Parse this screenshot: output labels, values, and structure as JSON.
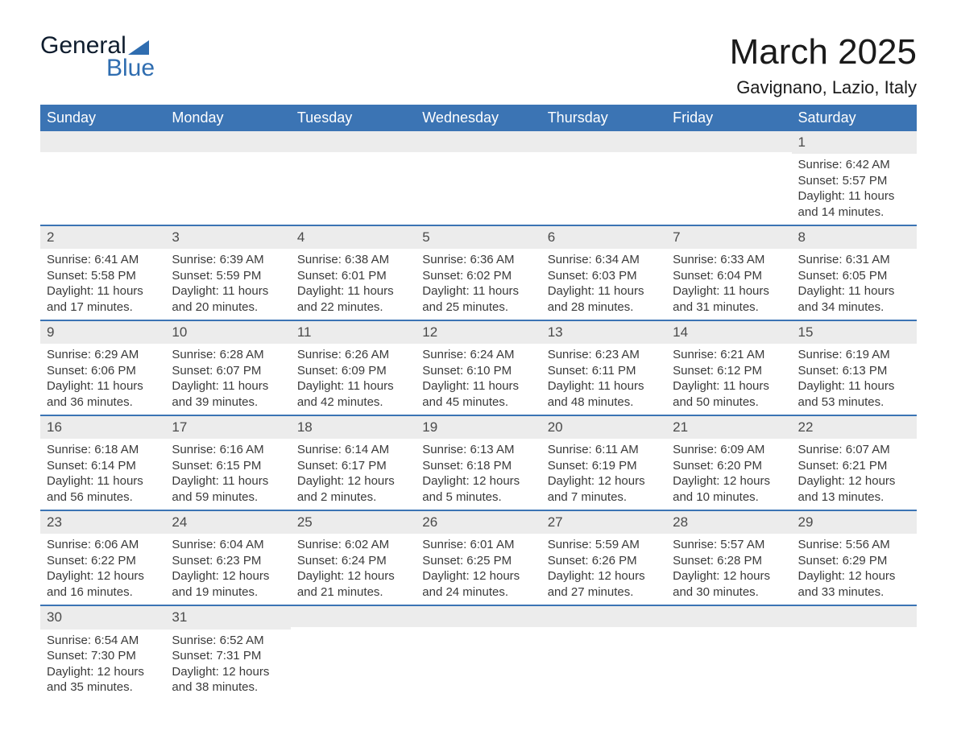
{
  "logo": {
    "text_general": "General",
    "text_blue": "Blue"
  },
  "header": {
    "month_title": "March 2025",
    "location": "Gavignano, Lazio, Italy"
  },
  "day_labels": [
    "Sunday",
    "Monday",
    "Tuesday",
    "Wednesday",
    "Thursday",
    "Friday",
    "Saturday"
  ],
  "colors": {
    "header_bg": "#3b74b4",
    "header_fg": "#ffffff",
    "strip_bg": "#ececec",
    "line": "#3b74b4",
    "text": "#3a3a3a",
    "logo_dark": "#0f1d2e",
    "logo_blue": "#2f6db0"
  },
  "weeks": [
    [
      {
        "blank": true
      },
      {
        "blank": true
      },
      {
        "blank": true
      },
      {
        "blank": true
      },
      {
        "blank": true
      },
      {
        "blank": true
      },
      {
        "n": "1",
        "sunrise": "Sunrise: 6:42 AM",
        "sunset": "Sunset: 5:57 PM",
        "d1": "Daylight: 11 hours",
        "d2": "and 14 minutes."
      }
    ],
    [
      {
        "n": "2",
        "sunrise": "Sunrise: 6:41 AM",
        "sunset": "Sunset: 5:58 PM",
        "d1": "Daylight: 11 hours",
        "d2": "and 17 minutes."
      },
      {
        "n": "3",
        "sunrise": "Sunrise: 6:39 AM",
        "sunset": "Sunset: 5:59 PM",
        "d1": "Daylight: 11 hours",
        "d2": "and 20 minutes."
      },
      {
        "n": "4",
        "sunrise": "Sunrise: 6:38 AM",
        "sunset": "Sunset: 6:01 PM",
        "d1": "Daylight: 11 hours",
        "d2": "and 22 minutes."
      },
      {
        "n": "5",
        "sunrise": "Sunrise: 6:36 AM",
        "sunset": "Sunset: 6:02 PM",
        "d1": "Daylight: 11 hours",
        "d2": "and 25 minutes."
      },
      {
        "n": "6",
        "sunrise": "Sunrise: 6:34 AM",
        "sunset": "Sunset: 6:03 PM",
        "d1": "Daylight: 11 hours",
        "d2": "and 28 minutes."
      },
      {
        "n": "7",
        "sunrise": "Sunrise: 6:33 AM",
        "sunset": "Sunset: 6:04 PM",
        "d1": "Daylight: 11 hours",
        "d2": "and 31 minutes."
      },
      {
        "n": "8",
        "sunrise": "Sunrise: 6:31 AM",
        "sunset": "Sunset: 6:05 PM",
        "d1": "Daylight: 11 hours",
        "d2": "and 34 minutes."
      }
    ],
    [
      {
        "n": "9",
        "sunrise": "Sunrise: 6:29 AM",
        "sunset": "Sunset: 6:06 PM",
        "d1": "Daylight: 11 hours",
        "d2": "and 36 minutes."
      },
      {
        "n": "10",
        "sunrise": "Sunrise: 6:28 AM",
        "sunset": "Sunset: 6:07 PM",
        "d1": "Daylight: 11 hours",
        "d2": "and 39 minutes."
      },
      {
        "n": "11",
        "sunrise": "Sunrise: 6:26 AM",
        "sunset": "Sunset: 6:09 PM",
        "d1": "Daylight: 11 hours",
        "d2": "and 42 minutes."
      },
      {
        "n": "12",
        "sunrise": "Sunrise: 6:24 AM",
        "sunset": "Sunset: 6:10 PM",
        "d1": "Daylight: 11 hours",
        "d2": "and 45 minutes."
      },
      {
        "n": "13",
        "sunrise": "Sunrise: 6:23 AM",
        "sunset": "Sunset: 6:11 PM",
        "d1": "Daylight: 11 hours",
        "d2": "and 48 minutes."
      },
      {
        "n": "14",
        "sunrise": "Sunrise: 6:21 AM",
        "sunset": "Sunset: 6:12 PM",
        "d1": "Daylight: 11 hours",
        "d2": "and 50 minutes."
      },
      {
        "n": "15",
        "sunrise": "Sunrise: 6:19 AM",
        "sunset": "Sunset: 6:13 PM",
        "d1": "Daylight: 11 hours",
        "d2": "and 53 minutes."
      }
    ],
    [
      {
        "n": "16",
        "sunrise": "Sunrise: 6:18 AM",
        "sunset": "Sunset: 6:14 PM",
        "d1": "Daylight: 11 hours",
        "d2": "and 56 minutes."
      },
      {
        "n": "17",
        "sunrise": "Sunrise: 6:16 AM",
        "sunset": "Sunset: 6:15 PM",
        "d1": "Daylight: 11 hours",
        "d2": "and 59 minutes."
      },
      {
        "n": "18",
        "sunrise": "Sunrise: 6:14 AM",
        "sunset": "Sunset: 6:17 PM",
        "d1": "Daylight: 12 hours",
        "d2": "and 2 minutes."
      },
      {
        "n": "19",
        "sunrise": "Sunrise: 6:13 AM",
        "sunset": "Sunset: 6:18 PM",
        "d1": "Daylight: 12 hours",
        "d2": "and 5 minutes."
      },
      {
        "n": "20",
        "sunrise": "Sunrise: 6:11 AM",
        "sunset": "Sunset: 6:19 PM",
        "d1": "Daylight: 12 hours",
        "d2": "and 7 minutes."
      },
      {
        "n": "21",
        "sunrise": "Sunrise: 6:09 AM",
        "sunset": "Sunset: 6:20 PM",
        "d1": "Daylight: 12 hours",
        "d2": "and 10 minutes."
      },
      {
        "n": "22",
        "sunrise": "Sunrise: 6:07 AM",
        "sunset": "Sunset: 6:21 PM",
        "d1": "Daylight: 12 hours",
        "d2": "and 13 minutes."
      }
    ],
    [
      {
        "n": "23",
        "sunrise": "Sunrise: 6:06 AM",
        "sunset": "Sunset: 6:22 PM",
        "d1": "Daylight: 12 hours",
        "d2": "and 16 minutes."
      },
      {
        "n": "24",
        "sunrise": "Sunrise: 6:04 AM",
        "sunset": "Sunset: 6:23 PM",
        "d1": "Daylight: 12 hours",
        "d2": "and 19 minutes."
      },
      {
        "n": "25",
        "sunrise": "Sunrise: 6:02 AM",
        "sunset": "Sunset: 6:24 PM",
        "d1": "Daylight: 12 hours",
        "d2": "and 21 minutes."
      },
      {
        "n": "26",
        "sunrise": "Sunrise: 6:01 AM",
        "sunset": "Sunset: 6:25 PM",
        "d1": "Daylight: 12 hours",
        "d2": "and 24 minutes."
      },
      {
        "n": "27",
        "sunrise": "Sunrise: 5:59 AM",
        "sunset": "Sunset: 6:26 PM",
        "d1": "Daylight: 12 hours",
        "d2": "and 27 minutes."
      },
      {
        "n": "28",
        "sunrise": "Sunrise: 5:57 AM",
        "sunset": "Sunset: 6:28 PM",
        "d1": "Daylight: 12 hours",
        "d2": "and 30 minutes."
      },
      {
        "n": "29",
        "sunrise": "Sunrise: 5:56 AM",
        "sunset": "Sunset: 6:29 PM",
        "d1": "Daylight: 12 hours",
        "d2": "and 33 minutes."
      }
    ],
    [
      {
        "n": "30",
        "sunrise": "Sunrise: 6:54 AM",
        "sunset": "Sunset: 7:30 PM",
        "d1": "Daylight: 12 hours",
        "d2": "and 35 minutes."
      },
      {
        "n": "31",
        "sunrise": "Sunrise: 6:52 AM",
        "sunset": "Sunset: 7:31 PM",
        "d1": "Daylight: 12 hours",
        "d2": "and 38 minutes."
      },
      {
        "blank": true
      },
      {
        "blank": true
      },
      {
        "blank": true
      },
      {
        "blank": true
      },
      {
        "blank": true
      }
    ]
  ]
}
